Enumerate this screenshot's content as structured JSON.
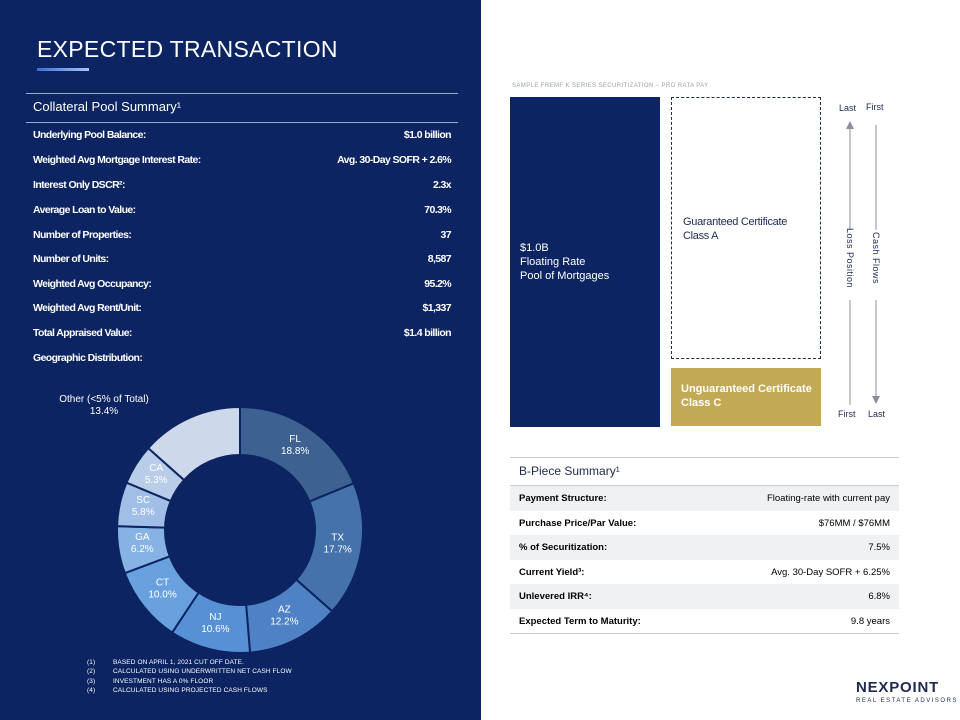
{
  "page": {
    "title": "EXPECTED TRANSACTION"
  },
  "pool_summary": {
    "title": "Collateral Pool Summary¹",
    "rows": [
      {
        "label": "Underlying Pool Balance:",
        "value": "$1.0 billion"
      },
      {
        "label": "Weighted Avg Mortgage Interest Rate:",
        "value": "Avg. 30-Day SOFR + 2.6%"
      },
      {
        "label": "Interest Only DSCR²:",
        "value": "2.3x"
      },
      {
        "label": "Average Loan to Value:",
        "value": "70.3%"
      },
      {
        "label": "Number of Properties:",
        "value": "37"
      },
      {
        "label": "Number of Units:",
        "value": "8,587"
      },
      {
        "label": "Weighted Avg Occupancy:",
        "value": "95.2%"
      },
      {
        "label": "Weighted Avg Rent/Unit:",
        "value": "$1,337"
      },
      {
        "label": "Total Appraised Value:",
        "value": "$1.4 billion"
      },
      {
        "label": "Geographic Distribution:",
        "value": ""
      }
    ]
  },
  "chart_data": {
    "type": "pie",
    "subtype": "donut",
    "title": "",
    "start": "top, clockwise",
    "slices": [
      {
        "label": "FL",
        "value": 18.8,
        "display": "18.8%",
        "color": "#3d6291"
      },
      {
        "label": "TX",
        "value": 17.7,
        "display": "17.7%",
        "color": "#4672ab"
      },
      {
        "label": "AZ",
        "value": 12.2,
        "display": "12.2%",
        "color": "#4e82c4"
      },
      {
        "label": "NJ",
        "value": 10.6,
        "display": "10.6%",
        "color": "#5790d5"
      },
      {
        "label": "CT",
        "value": 10.0,
        "display": "10.0%",
        "color": "#69a1df"
      },
      {
        "label": "GA",
        "value": 6.2,
        "display": "6.2%",
        "color": "#86b2e4"
      },
      {
        "label": "SC",
        "value": 5.8,
        "display": "5.8%",
        "color": "#a1bfe6"
      },
      {
        "label": "CA",
        "value": 5.3,
        "display": "5.3%",
        "color": "#b9cde8"
      },
      {
        "label": "Other (<5% of Total)",
        "value": 13.4,
        "display": "13.4%",
        "color": "#cdd9ea"
      }
    ]
  },
  "footnotes": [
    {
      "num": "(1)",
      "text": "BASED ON APRIL 1, 2021 CUT OFF DATE."
    },
    {
      "num": "(2)",
      "text": "CALCULATED USING UNDERWRITTEN NET CASH FLOW"
    },
    {
      "num": "(3)",
      "text": "INVESTMENT HAS A 0% FLOOR"
    },
    {
      "num": "(4)",
      "text": "CALCULATED USING PROJECTED CASH FLOWS"
    }
  ],
  "structure": {
    "title": "SAMPLE FREMF K SERIES SECURITIZATION – PRO RATA PAY",
    "pool_box": [
      "$1.0B",
      "Floating Rate",
      "Pool of Mortgages"
    ],
    "class_a": [
      "Guaranteed Certificate",
      "Class A"
    ],
    "class_c": [
      "Unguaranteed  Certificate",
      "Class C"
    ],
    "loss_position": {
      "label": "Loss Position",
      "top": "Last",
      "bottom": "First"
    },
    "cash_flows": {
      "label": "Cash Flows",
      "top": "First",
      "bottom": "Last"
    },
    "colors": {
      "pool": "#0c2461",
      "class_c": "#c2a955"
    }
  },
  "b_piece": {
    "title": "B-Piece Summary¹",
    "rows": [
      {
        "label": "Payment Structure:",
        "value": "Floating-rate with current pay"
      },
      {
        "label": "Purchase Price/Par Value:",
        "value": "$76MM / $76MM"
      },
      {
        "label": "% of Securitization:",
        "value": "7.5%"
      },
      {
        "label": "Current Yield³:",
        "value": "Avg. 30-Day SOFR + 6.25%"
      },
      {
        "label": "Unlevered IRR⁴:",
        "value": "6.8%"
      },
      {
        "label": "Expected Term to Maturity:",
        "value": "9.8 years"
      }
    ]
  },
  "logo": {
    "name": "NEXPOINT",
    "sub": "REAL ESTATE ADVISORS"
  }
}
